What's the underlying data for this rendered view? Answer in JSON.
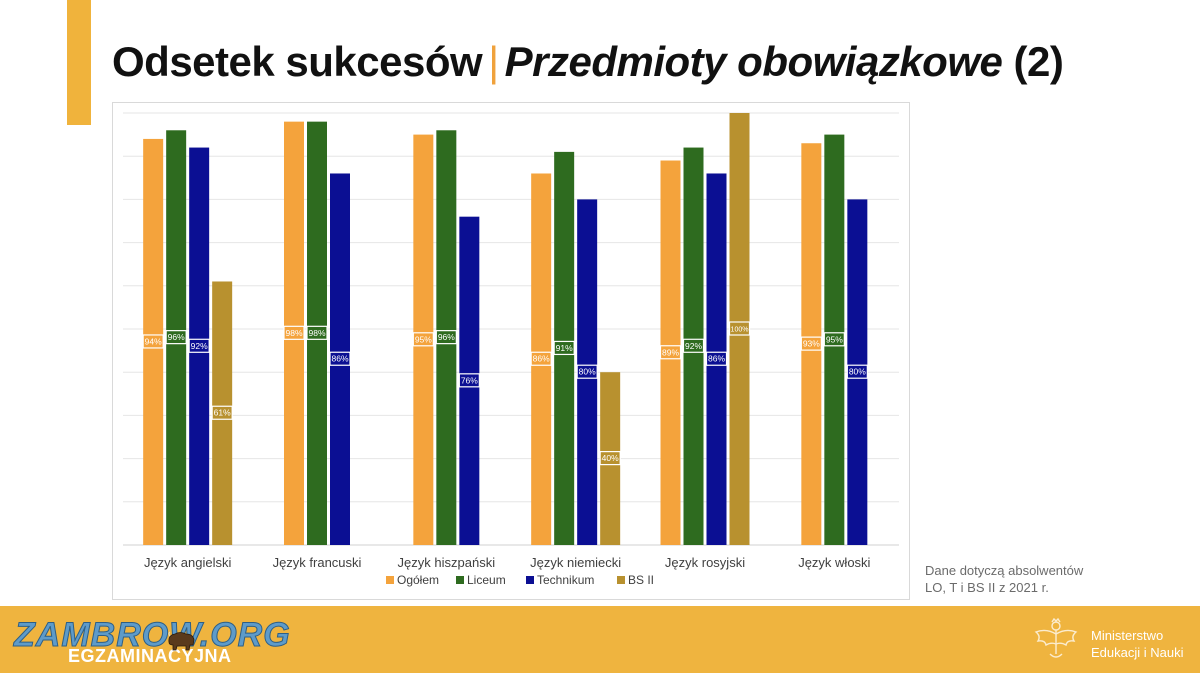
{
  "slide": {
    "title_main": "Odsetek sukcesów",
    "title_separator": "|",
    "title_italic": "Przedmioty obowiązkowe",
    "title_suffix": "(2)"
  },
  "note": {
    "line1": "Dane dotyczą absolwentów",
    "line2": "LO, T i BS II z 2021 r."
  },
  "footer": {
    "watermark": "ZAMBROW.ORG",
    "org_fragment": "EGZAMINACYJNA",
    "ministry_line1": "Ministerstwo",
    "ministry_line2": "Edukacji i Nauki"
  },
  "colors": {
    "accent": "#f0b33c",
    "ogolem": "#f4a33c",
    "liceum": "#2e6b1f",
    "technikum": "#0b0f93",
    "bs2": "#b8912f"
  },
  "chart_data": {
    "type": "bar",
    "categories": [
      "Język angielski",
      "Język francuski",
      "Język hiszpański",
      "Język niemiecki",
      "Język rosyjski",
      "Język włoski"
    ],
    "series": [
      {
        "name": "Ogółem",
        "color": "#f4a33c",
        "values": [
          94,
          98,
          95,
          86,
          89,
          93
        ],
        "labels": [
          "94%",
          "98%",
          "95%",
          "86%",
          "89%",
          "93%"
        ]
      },
      {
        "name": "Liceum",
        "color": "#2e6b1f",
        "values": [
          96,
          98,
          96,
          91,
          92,
          95
        ],
        "labels": [
          "96%",
          "98%",
          "96%",
          "91%",
          "92%",
          "95%"
        ]
      },
      {
        "name": "Technikum",
        "color": "#0b0f93",
        "values": [
          92,
          86,
          76,
          80,
          86,
          80
        ],
        "labels": [
          "92%",
          "86%",
          "76%",
          "80%",
          "86%",
          "80%"
        ]
      },
      {
        "name": "BS II",
        "color": "#b8912f",
        "values": [
          61,
          null,
          null,
          40,
          100,
          null
        ],
        "labels": [
          "61%",
          "",
          "",
          "40%",
          "100%",
          ""
        ]
      }
    ],
    "ylim": [
      0,
      100
    ],
    "grid": true,
    "legend_position": "bottom",
    "title": "",
    "xlabel": "",
    "ylabel": ""
  }
}
